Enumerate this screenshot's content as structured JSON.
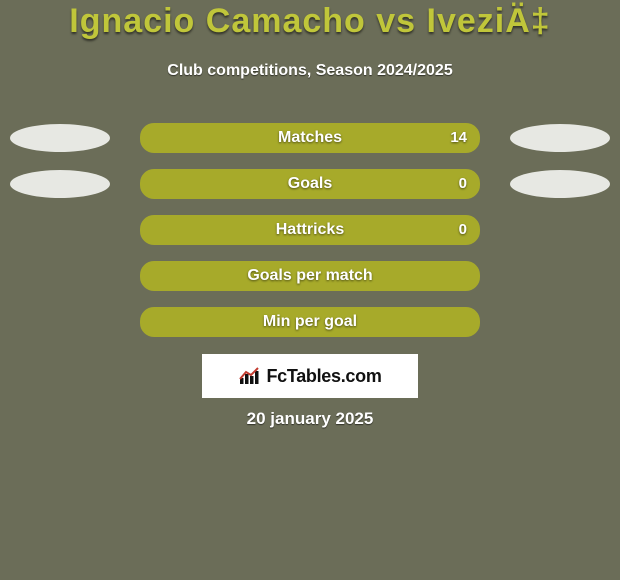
{
  "page": {
    "background_color": "#6b6d58",
    "text_color": "#ffffff"
  },
  "title": {
    "text": "Ignacio Camacho vs IveziÄ‡",
    "color": "#c0c63a",
    "fontsize": 34
  },
  "subtitle": {
    "text": "Club competitions, Season 2024/2025",
    "color": "#ffffff",
    "fontsize": 16
  },
  "ellipse": {
    "fill": "#e7e8e3",
    "width": 100,
    "height": 28
  },
  "bar_style": {
    "border_color": "#a7aa2a",
    "height": 30,
    "border_radius": 14,
    "label_color": "#ffffff",
    "value_color": "#ffffff"
  },
  "rows": [
    {
      "label": "Matches",
      "right_value": "14",
      "show_left_ellipse": true,
      "show_right_ellipse": true,
      "bar_fill": "#a7aa2a"
    },
    {
      "label": "Goals",
      "right_value": "0",
      "show_left_ellipse": true,
      "show_right_ellipse": true,
      "bar_fill": "#a7aa2a"
    },
    {
      "label": "Hattricks",
      "right_value": "0",
      "show_left_ellipse": false,
      "show_right_ellipse": false,
      "bar_fill": "#a7aa2a"
    },
    {
      "label": "Goals per match",
      "right_value": "",
      "show_left_ellipse": false,
      "show_right_ellipse": false,
      "bar_fill": "#a7aa2a"
    },
    {
      "label": "Min per goal",
      "right_value": "",
      "show_left_ellipse": false,
      "show_right_ellipse": false,
      "bar_fill": "#a7aa2a"
    }
  ],
  "logo": {
    "text": "FcTables.com",
    "text_color": "#111111",
    "box_bg": "#ffffff",
    "chart_bar_color": "#111111",
    "chart_line_color": "#c23a2e"
  },
  "date": {
    "text": "20 january 2025",
    "color": "#ffffff",
    "fontsize": 17
  }
}
